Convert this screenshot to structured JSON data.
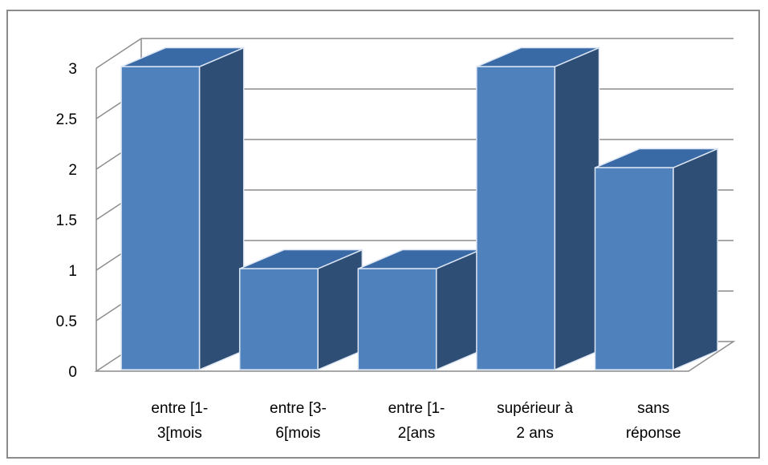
{
  "chart_data": {
    "type": "bar",
    "style": "3d-column",
    "categories": [
      [
        "entre [1-",
        "3[mois"
      ],
      [
        "entre [3-",
        "6[mois"
      ],
      [
        "entre [1-",
        "2[ans"
      ],
      [
        "supérieur à",
        "2 ans"
      ],
      [
        "sans",
        "réponse"
      ]
    ],
    "values": [
      3,
      1,
      1,
      3,
      2
    ],
    "y_ticks": [
      "0",
      "0.5",
      "1",
      "1.5",
      "2",
      "2.5",
      "3"
    ],
    "ylim": [
      0,
      3
    ],
    "grid": true,
    "legend": false,
    "title": "",
    "xlabel": "",
    "ylabel": "",
    "colors": {
      "bar_front": "#4f81bd",
      "bar_side": "#2f4e75",
      "bar_top": "#3a6aa6",
      "bar_edge": "#dbe5f3",
      "grid": "#8c8c8c",
      "wall": "#8c8c8c"
    }
  }
}
